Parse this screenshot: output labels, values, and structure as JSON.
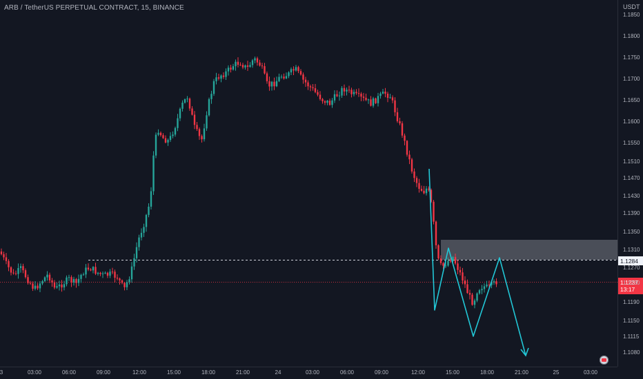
{
  "symbol_title": "ARB / TetherUS PERPETUAL CONTRACT, 15, BINANCE",
  "currency": "USDT",
  "price_ticks": [
    "1.1850",
    "1.1800",
    "1.1750",
    "1.1700",
    "1.1650",
    "1.1600",
    "1.1550",
    "1.1510",
    "1.1470",
    "1.1430",
    "1.1390",
    "1.1350",
    "1.1310",
    "1.1270",
    "1.1230",
    "1.1190",
    "1.1150",
    "1.1115",
    "1.1080"
  ],
  "time_ticks": [
    "3",
    "03:00",
    "06:00",
    "09:00",
    "12:00",
    "15:00",
    "18:00",
    "21:00",
    "24",
    "03:00",
    "06:00",
    "09:00",
    "12:00",
    "15:00",
    "18:00",
    "21:00",
    "25",
    "03:00"
  ],
  "zone_price": "1.1284",
  "last_price": "1.1237",
  "countdown": "13:17",
  "colors": {
    "background": "#131722",
    "up": "#26a69a",
    "down": "#f23645",
    "pattern": "#22c7d6",
    "zone": "#b2b5be"
  },
  "icons": [
    "exchange-logo-icon"
  ],
  "candle_seed": 7
}
